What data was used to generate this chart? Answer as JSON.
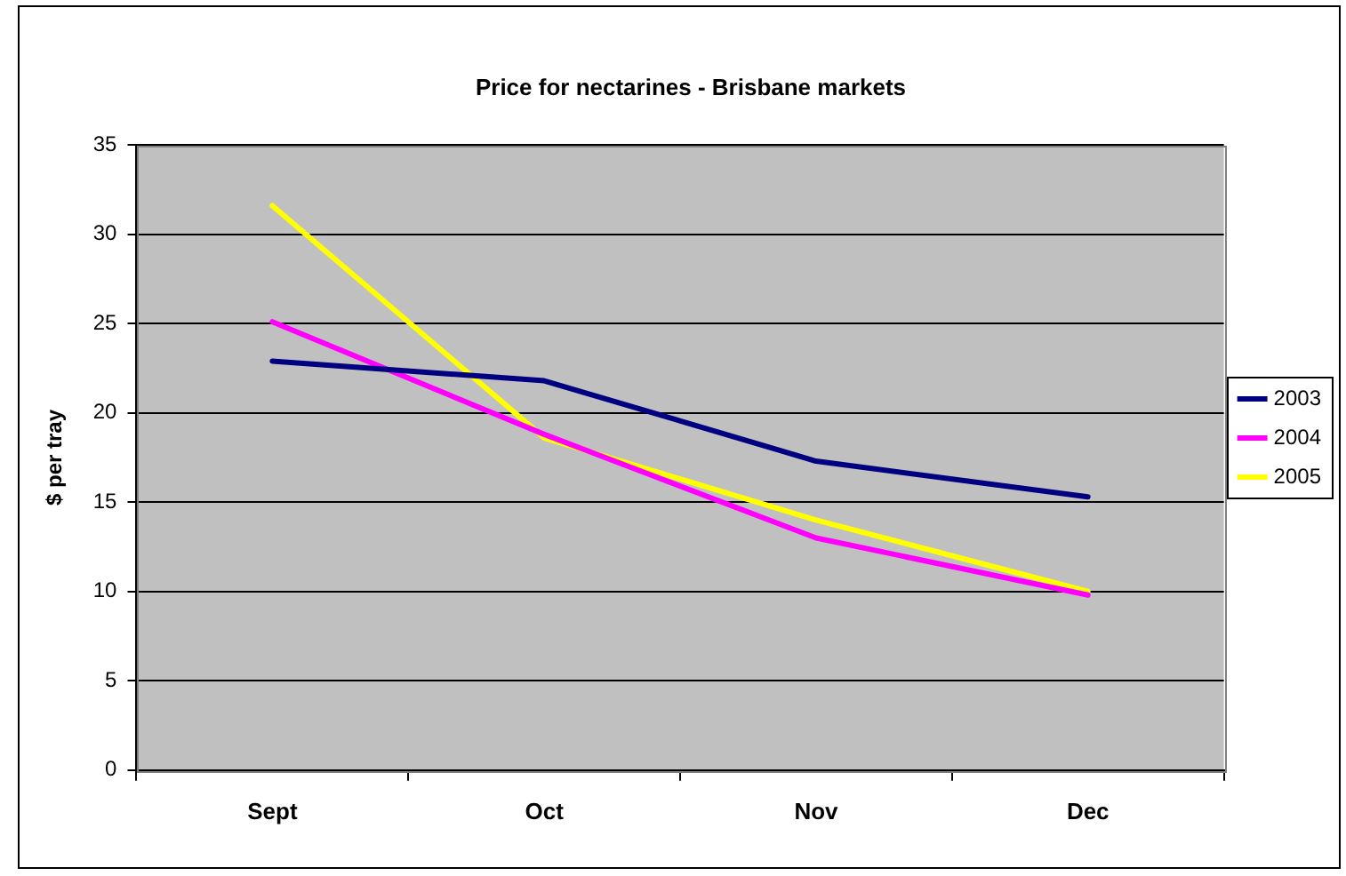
{
  "chart_data": {
    "type": "line",
    "title": "Price for nectarines - Brisbane markets",
    "ylabel": "$ per tray",
    "categories": [
      "Sept",
      "Oct",
      "Nov",
      "Dec"
    ],
    "series": [
      {
        "name": "2003",
        "color": "#000080",
        "values": [
          22.9,
          21.8,
          17.3,
          15.3
        ]
      },
      {
        "name": "2004",
        "color": "#ff00ff",
        "values": [
          25.1,
          18.8,
          13.0,
          9.8
        ]
      },
      {
        "name": "2005",
        "color": "#ffff00",
        "values": [
          31.6,
          18.6,
          14.0,
          10.0
        ]
      }
    ],
    "ylim": [
      0,
      35
    ],
    "yticks": [
      0,
      5,
      10,
      15,
      20,
      25,
      30,
      35
    ],
    "grid": "y",
    "legend": "right",
    "marker": "none"
  }
}
